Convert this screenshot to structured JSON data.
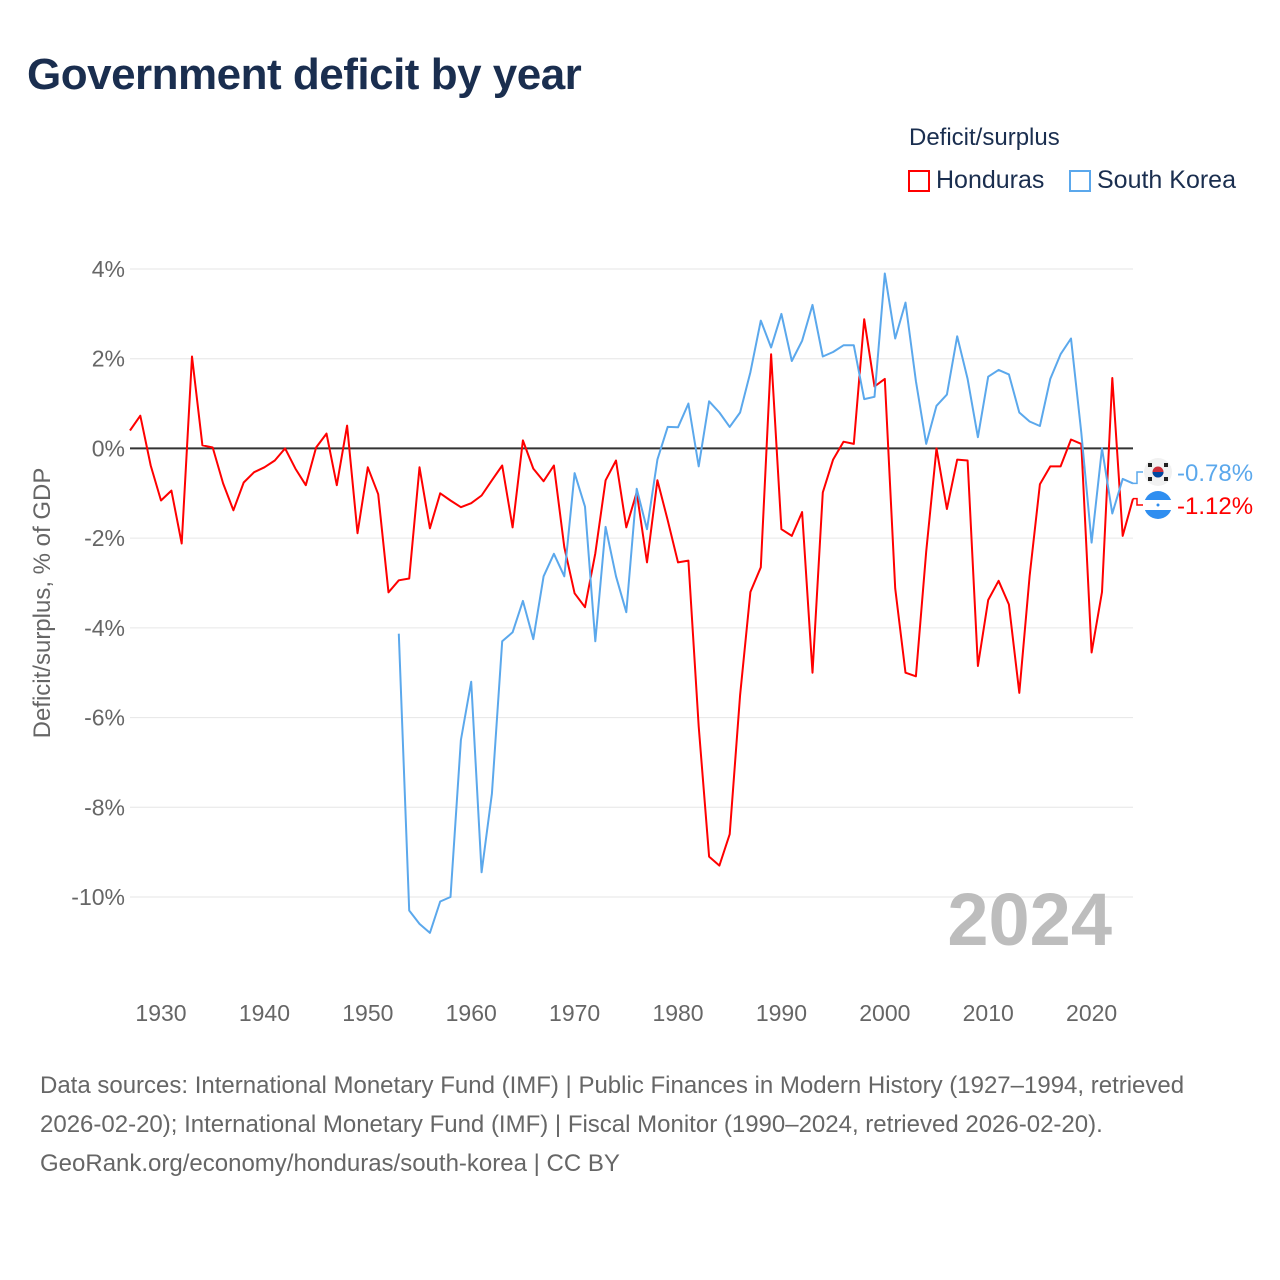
{
  "title": "Government deficit by year",
  "legend_title": "Deficit/surplus",
  "colors": {
    "honduras": "#ff0000",
    "south_korea": "#5ba8ec",
    "zero_line": "#333333",
    "grid": "#e6e6e6",
    "watermark": "#bdbdbd"
  },
  "chart_data": {
    "type": "line",
    "title": "Government deficit by year",
    "xlabel": "",
    "ylabel": "Deficit/surplus, % of GDP",
    "xlim": [
      1927,
      2024
    ],
    "ylim": [
      -10,
      4
    ],
    "yticks": [
      4,
      2,
      0,
      -2,
      -4,
      -6,
      -8,
      -10
    ],
    "ytick_labels": [
      "4%",
      "2%",
      "0%",
      "-2%",
      "-4%",
      "-6%",
      "-8%",
      "-10%"
    ],
    "xticks": [
      1930,
      1940,
      1950,
      1960,
      1970,
      1980,
      1990,
      2000,
      2010,
      2020
    ],
    "xtick_labels": [
      "1930",
      "1940",
      "1950",
      "1960",
      "1970",
      "1980",
      "1990",
      "2000",
      "2010",
      "2020"
    ],
    "grid": true,
    "legend_position": "top-right",
    "year_watermark": "2024",
    "series": [
      {
        "name": "Honduras",
        "key": "honduras",
        "start_year": 1927,
        "end_label": "-1.12%",
        "values": [
          0.4,
          0.73,
          -0.38,
          -1.16,
          -0.94,
          -2.12,
          2.05,
          0.07,
          0.02,
          -0.78,
          -1.38,
          -0.76,
          -0.53,
          -0.42,
          -0.27,
          0.0,
          -0.45,
          -0.82,
          0.02,
          0.33,
          -0.82,
          0.51,
          -1.89,
          -0.42,
          -1.02,
          -3.21,
          -2.94,
          -2.9,
          -0.42,
          -1.78,
          -1.0,
          -1.16,
          -1.31,
          -1.22,
          -1.05,
          -0.71,
          -0.38,
          -1.76,
          0.18,
          -0.45,
          -0.73,
          -0.38,
          -2.2,
          -3.23,
          -3.54,
          -2.34,
          -0.71,
          -0.27,
          -1.76,
          -0.98,
          -2.54,
          -0.71,
          -1.6,
          -2.54,
          -2.5,
          -6.2,
          -9.1,
          -9.3,
          -8.6,
          -5.5,
          -3.2,
          -2.65,
          2.1,
          -1.8,
          -1.95,
          -1.42,
          -5.0,
          -0.98,
          -0.25,
          0.15,
          0.1,
          2.88,
          1.38,
          1.55,
          -3.12,
          -5.0,
          -5.08,
          -2.3,
          0.0,
          -1.35,
          -0.25,
          -0.27,
          -4.85,
          -3.38,
          -2.95,
          -3.48,
          -5.45,
          -2.85,
          -0.8,
          -0.4,
          -0.4,
          0.2,
          0.1,
          -4.55,
          -3.2,
          1.57,
          -1.95,
          -1.12
        ]
      },
      {
        "name": "South Korea",
        "key": "south_korea",
        "start_year": 1953,
        "end_label": "-0.78%",
        "values": [
          -4.13,
          -10.3,
          -10.6,
          -10.8,
          -10.1,
          -10.0,
          -6.5,
          -5.2,
          -9.45,
          -7.7,
          -4.3,
          -4.1,
          -3.4,
          -4.25,
          -2.85,
          -2.35,
          -2.85,
          -0.55,
          -1.3,
          -4.3,
          -1.75,
          -2.85,
          -3.65,
          -0.9,
          -1.8,
          -0.25,
          0.48,
          0.47,
          1.0,
          -0.4,
          1.05,
          0.8,
          0.48,
          0.8,
          1.7,
          2.85,
          2.25,
          3.0,
          1.95,
          2.4,
          3.2,
          2.05,
          2.15,
          2.3,
          2.3,
          1.1,
          1.15,
          3.9,
          2.45,
          3.25,
          1.5,
          0.1,
          0.95,
          1.2,
          2.5,
          1.55,
          0.25,
          1.6,
          1.75,
          1.65,
          0.8,
          0.6,
          0.5,
          1.55,
          2.1,
          2.45,
          0.35,
          -2.1,
          0.0,
          -1.45,
          -0.68,
          -0.78
        ]
      }
    ]
  },
  "footer": {
    "sources": "Data sources: International Monetary Fund (IMF) | Public Finances in Modern History (1927–1994, retrieved 2026-02-20); International Monetary Fund (IMF) | Fiscal Monitor (1990–2024, retrieved 2026-02-20).",
    "credit": "GeoRank.org/economy/honduras/south-korea | CC BY"
  }
}
